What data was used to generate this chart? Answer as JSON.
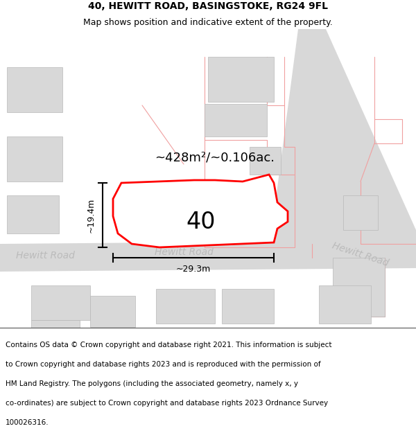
{
  "title_line1": "40, HEWITT ROAD, BASINGSTOKE, RG24 9FL",
  "title_line2": "Map shows position and indicative extent of the property.",
  "footer_lines": [
    "Contains OS data © Crown copyright and database right 2021. This information is subject",
    "to Crown copyright and database rights 2023 and is reproduced with the permission of",
    "HM Land Registry. The polygons (including the associated geometry, namely x, y",
    "co-ordinates) are subject to Crown copyright and database rights 2023 Ordnance Survey",
    "100026316."
  ],
  "property_number": "40",
  "area_text": "~428m²/~0.106ac.",
  "width_label": "~29.3m",
  "height_label": "~19.4m",
  "road_label_center": "Hewitt Road",
  "road_label_left": "Hewitt Road",
  "road_label_right": "Hewitt Road",
  "pink": "#f0a0a0",
  "road_fill": "#d8d8d8",
  "bldg_fill": "#d8d8d8",
  "bldg_edge": "#b8b8b8",
  "plot_fill": "#ffffff",
  "plot_edge": "#ff0000",
  "road_text_color": "#bbbbbb",
  "title_fontsize": 10,
  "subtitle_fontsize": 9,
  "footer_fontsize": 7.5,
  "number_fontsize": 24,
  "area_fontsize": 13,
  "dim_fontsize": 9,
  "road_fontsize": 10
}
